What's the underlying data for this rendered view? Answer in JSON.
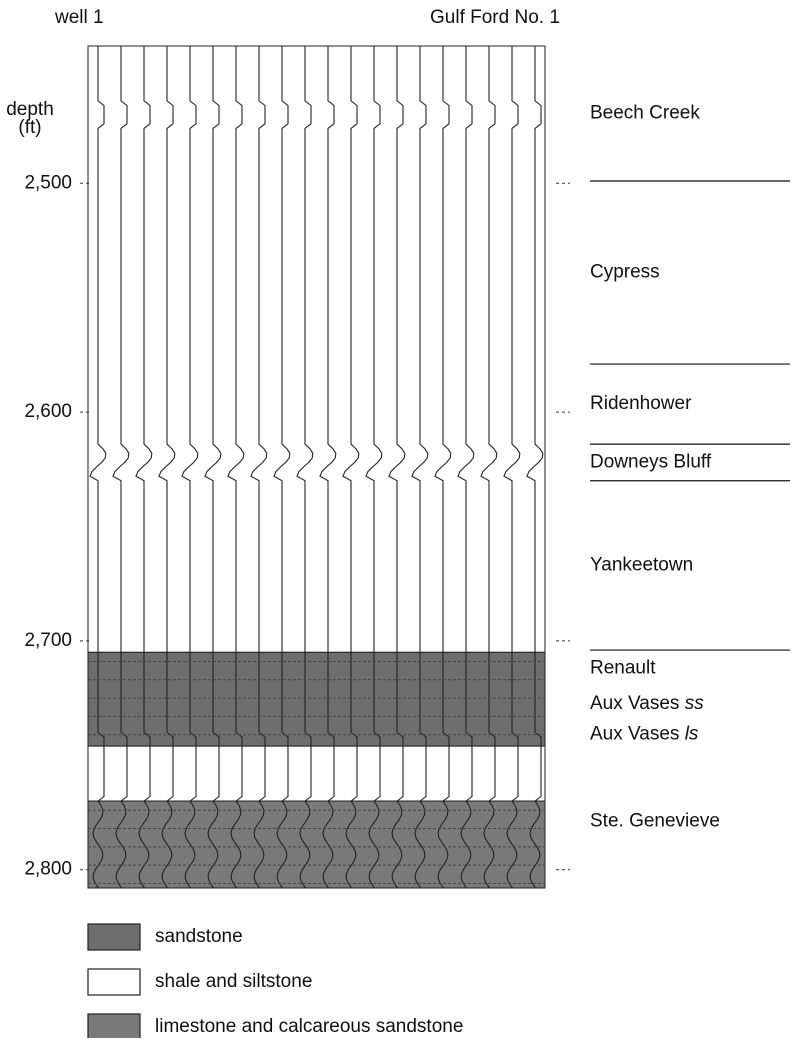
{
  "header": {
    "well": "well 1",
    "name": "Gulf Ford No. 1"
  },
  "depth_axis": {
    "label_lines": [
      "depth",
      "(ft)"
    ],
    "ylim": [
      2440,
      2808
    ],
    "ticks": [
      {
        "value": 2500,
        "label": "2,500"
      },
      {
        "value": 2600,
        "label": "2,600"
      },
      {
        "value": 2700,
        "label": "2,700"
      },
      {
        "value": 2800,
        "label": "2,800"
      }
    ],
    "boundary_lines": [
      2499,
      2579,
      2614,
      2630,
      2704
    ]
  },
  "formations": [
    {
      "name": "Beech Creek",
      "top": 2440,
      "base": 2499
    },
    {
      "name": "Cypress",
      "top": 2499,
      "base": 2579
    },
    {
      "name": "Ridenhower",
      "top": 2579,
      "base": 2614
    },
    {
      "name": "Downeys Bluff",
      "top": 2614,
      "base": 2630
    },
    {
      "name": "Yankeetown",
      "top": 2630,
      "base": 2704
    },
    {
      "name": "Renault",
      "top": 2704,
      "base": 2720
    },
    {
      "name": "Aux Vases",
      "qualifier": "ss",
      "top": 2720,
      "base": 2735
    },
    {
      "name": "Aux Vases",
      "qualifier": "ls",
      "top": 2735,
      "base": 2747
    },
    {
      "name": "Ste. Genevieve",
      "top": 2750,
      "base": 2808
    }
  ],
  "lithology": [
    {
      "color": "#ffffff",
      "top": 2440,
      "base": 2705
    },
    {
      "color": "#6e6e6e",
      "top": 2705,
      "base": 2746
    },
    {
      "color": "#ffffff",
      "top": 2746,
      "base": 2770
    },
    {
      "color": "#7a7a7a",
      "top": 2770,
      "base": 2808
    }
  ],
  "legend": [
    {
      "label": "sandstone",
      "color": "#6e6e6e"
    },
    {
      "label": "shale and siltstone",
      "color": "#ffffff"
    },
    {
      "label": "limestone and calcareous sandstone",
      "color": "#7a7a7a"
    }
  ]
}
